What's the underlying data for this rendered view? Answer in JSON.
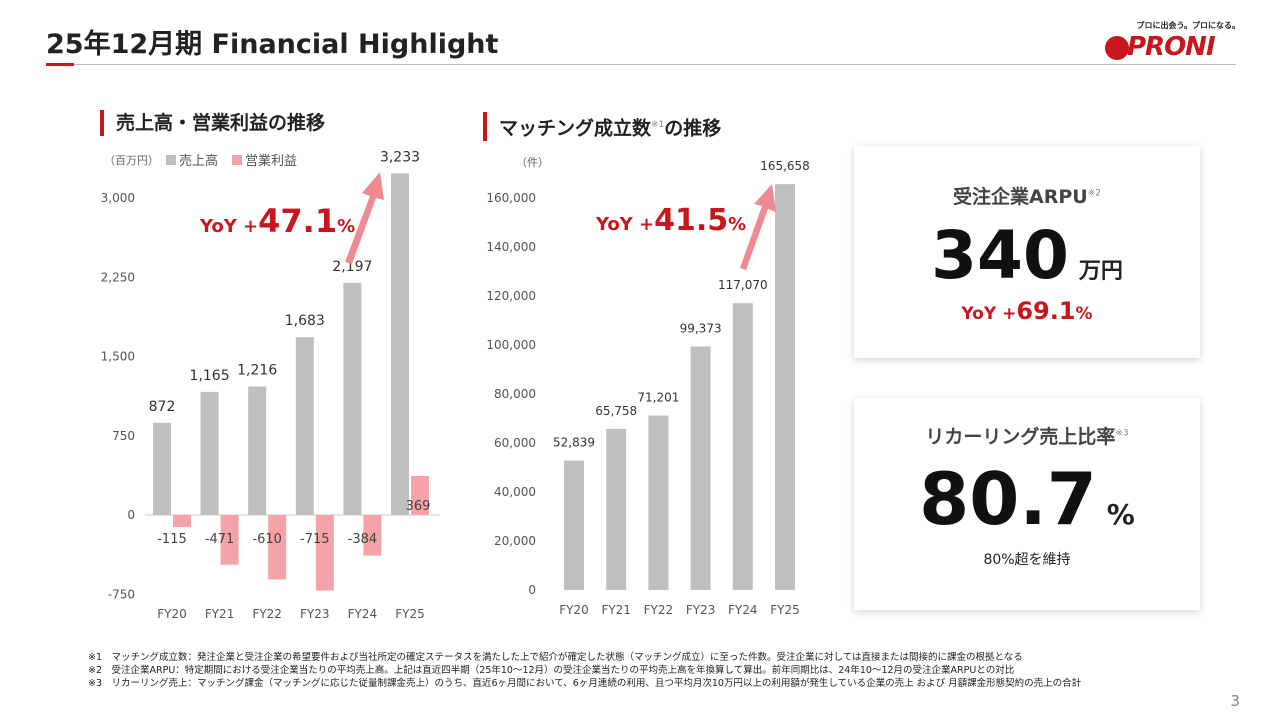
{
  "title": "25年12月期 Financial Highlight",
  "logo": {
    "tagline": "プロに出会う。プロになる。",
    "word": "PRONI"
  },
  "page_number": "3",
  "colors": {
    "accent": "#c8161d",
    "gray_bar": "#bfbfbf",
    "pink_bar": "#f4a3a8"
  },
  "chart_data": [
    {
      "type": "bar",
      "title": "売上高・営業利益の推移",
      "unit": "（百万円）",
      "categories": [
        "FY20",
        "FY21",
        "FY22",
        "FY23",
        "FY24",
        "FY25"
      ],
      "series": [
        {
          "name": "売上高",
          "values": [
            872,
            1165,
            1216,
            1683,
            2197,
            3233
          ]
        },
        {
          "name": "営業利益",
          "values": [
            -115,
            -471,
            -610,
            -715,
            -384,
            369
          ]
        }
      ],
      "yticks": [
        "3,000",
        "2,250",
        "1,500",
        "750",
        "0",
        "-750"
      ],
      "ylim": [
        -750,
        3000
      ],
      "annotation": {
        "prefix": "YoY +",
        "value": "47.1",
        "suffix": "%"
      },
      "legend": "top-left"
    },
    {
      "type": "bar",
      "title": "マッチング成立数",
      "title_suffix": "の推移",
      "title_note": "※1",
      "unit": "（件）",
      "categories": [
        "FY20",
        "FY21",
        "FY22",
        "FY23",
        "FY24",
        "FY25"
      ],
      "series": [
        {
          "values": [
            52839,
            65758,
            71201,
            99373,
            117070,
            165658
          ]
        }
      ],
      "yticks": [
        "160,000",
        "140,000",
        "120,000",
        "100,000",
        "80,000",
        "60,000",
        "40,000",
        "20,000",
        "0"
      ],
      "ylim": [
        0,
        160000
      ],
      "annotation": {
        "prefix": "YoY +",
        "value": "41.5",
        "suffix": "%"
      }
    }
  ],
  "kpi": [
    {
      "label": "受注企業ARPU",
      "note": "※2",
      "value": "340",
      "unit": "万円",
      "yoy_prefix": "YoY +",
      "yoy_value": "69.1",
      "yoy_suffix": "%"
    },
    {
      "label": "リカーリング売上比率",
      "note": "※3",
      "value": "80.7",
      "unit": "%",
      "sub": "80%超を維持"
    }
  ],
  "notes": [
    "※1　マッチング成立数：発注企業と受注企業の希望要件および当社所定の確定ステータスを満たした上で紹介が確定した状態（マッチング成立）に至った件数。受注企業に対しては直接または間接的に課金の根拠となる",
    "※2　受注企業ARPU：特定期間における受注企業当たりの平均売上高。上記は直近四半期（25年10～12月）の受注企業当たりの平均売上高を年換算して算出。前年同期比は、24年10～12月の受注企業ARPUとの対比",
    "※3　リカーリング売上：マッチング課金（マッチングに応じた従量制課金売上）のうち、直近6ヶ月間において、6ヶ月連続の利用、且つ平均月次10万円以上の利用額が発生している企業の売上 および 月額課金形態契約の売上の合計"
  ]
}
